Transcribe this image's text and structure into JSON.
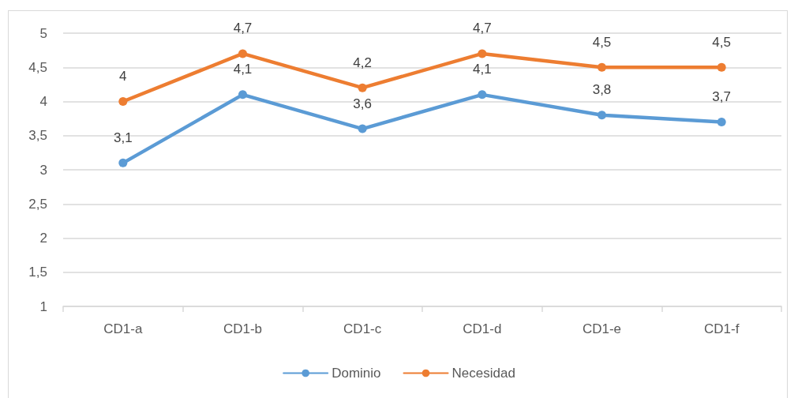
{
  "chart_data": {
    "type": "line",
    "categories": [
      "CD1-a",
      "CD1-b",
      "CD1-c",
      "CD1-d",
      "CD1-e",
      "CD1-f"
    ],
    "series": [
      {
        "name": "Dominio",
        "color": "#5b9bd5",
        "values": [
          3.1,
          4.1,
          3.6,
          4.1,
          3.8,
          3.7
        ],
        "value_labels": [
          "3,1",
          "4,1",
          "3,6",
          "4,1",
          "3,8",
          "3,7"
        ]
      },
      {
        "name": "Necesidad",
        "color": "#ed7d31",
        "values": [
          4,
          4.7,
          4.2,
          4.7,
          4.5,
          4.5
        ],
        "value_labels": [
          "4",
          "4,7",
          "4,2",
          "4,7",
          "4,5",
          "4,5"
        ]
      }
    ],
    "ylim": [
      1,
      5
    ],
    "yticks": [
      1,
      {
        "value": 1.5,
        "label": "1,5"
      },
      2,
      {
        "value": 2.5,
        "label": "2,5"
      },
      3,
      {
        "value": 3.5,
        "label": "3,5"
      },
      4,
      {
        "value": 4.5,
        "label": "4,5"
      },
      5
    ],
    "grid": "y",
    "legend": "bottom",
    "marker": "circle",
    "line_style": "solid"
  }
}
